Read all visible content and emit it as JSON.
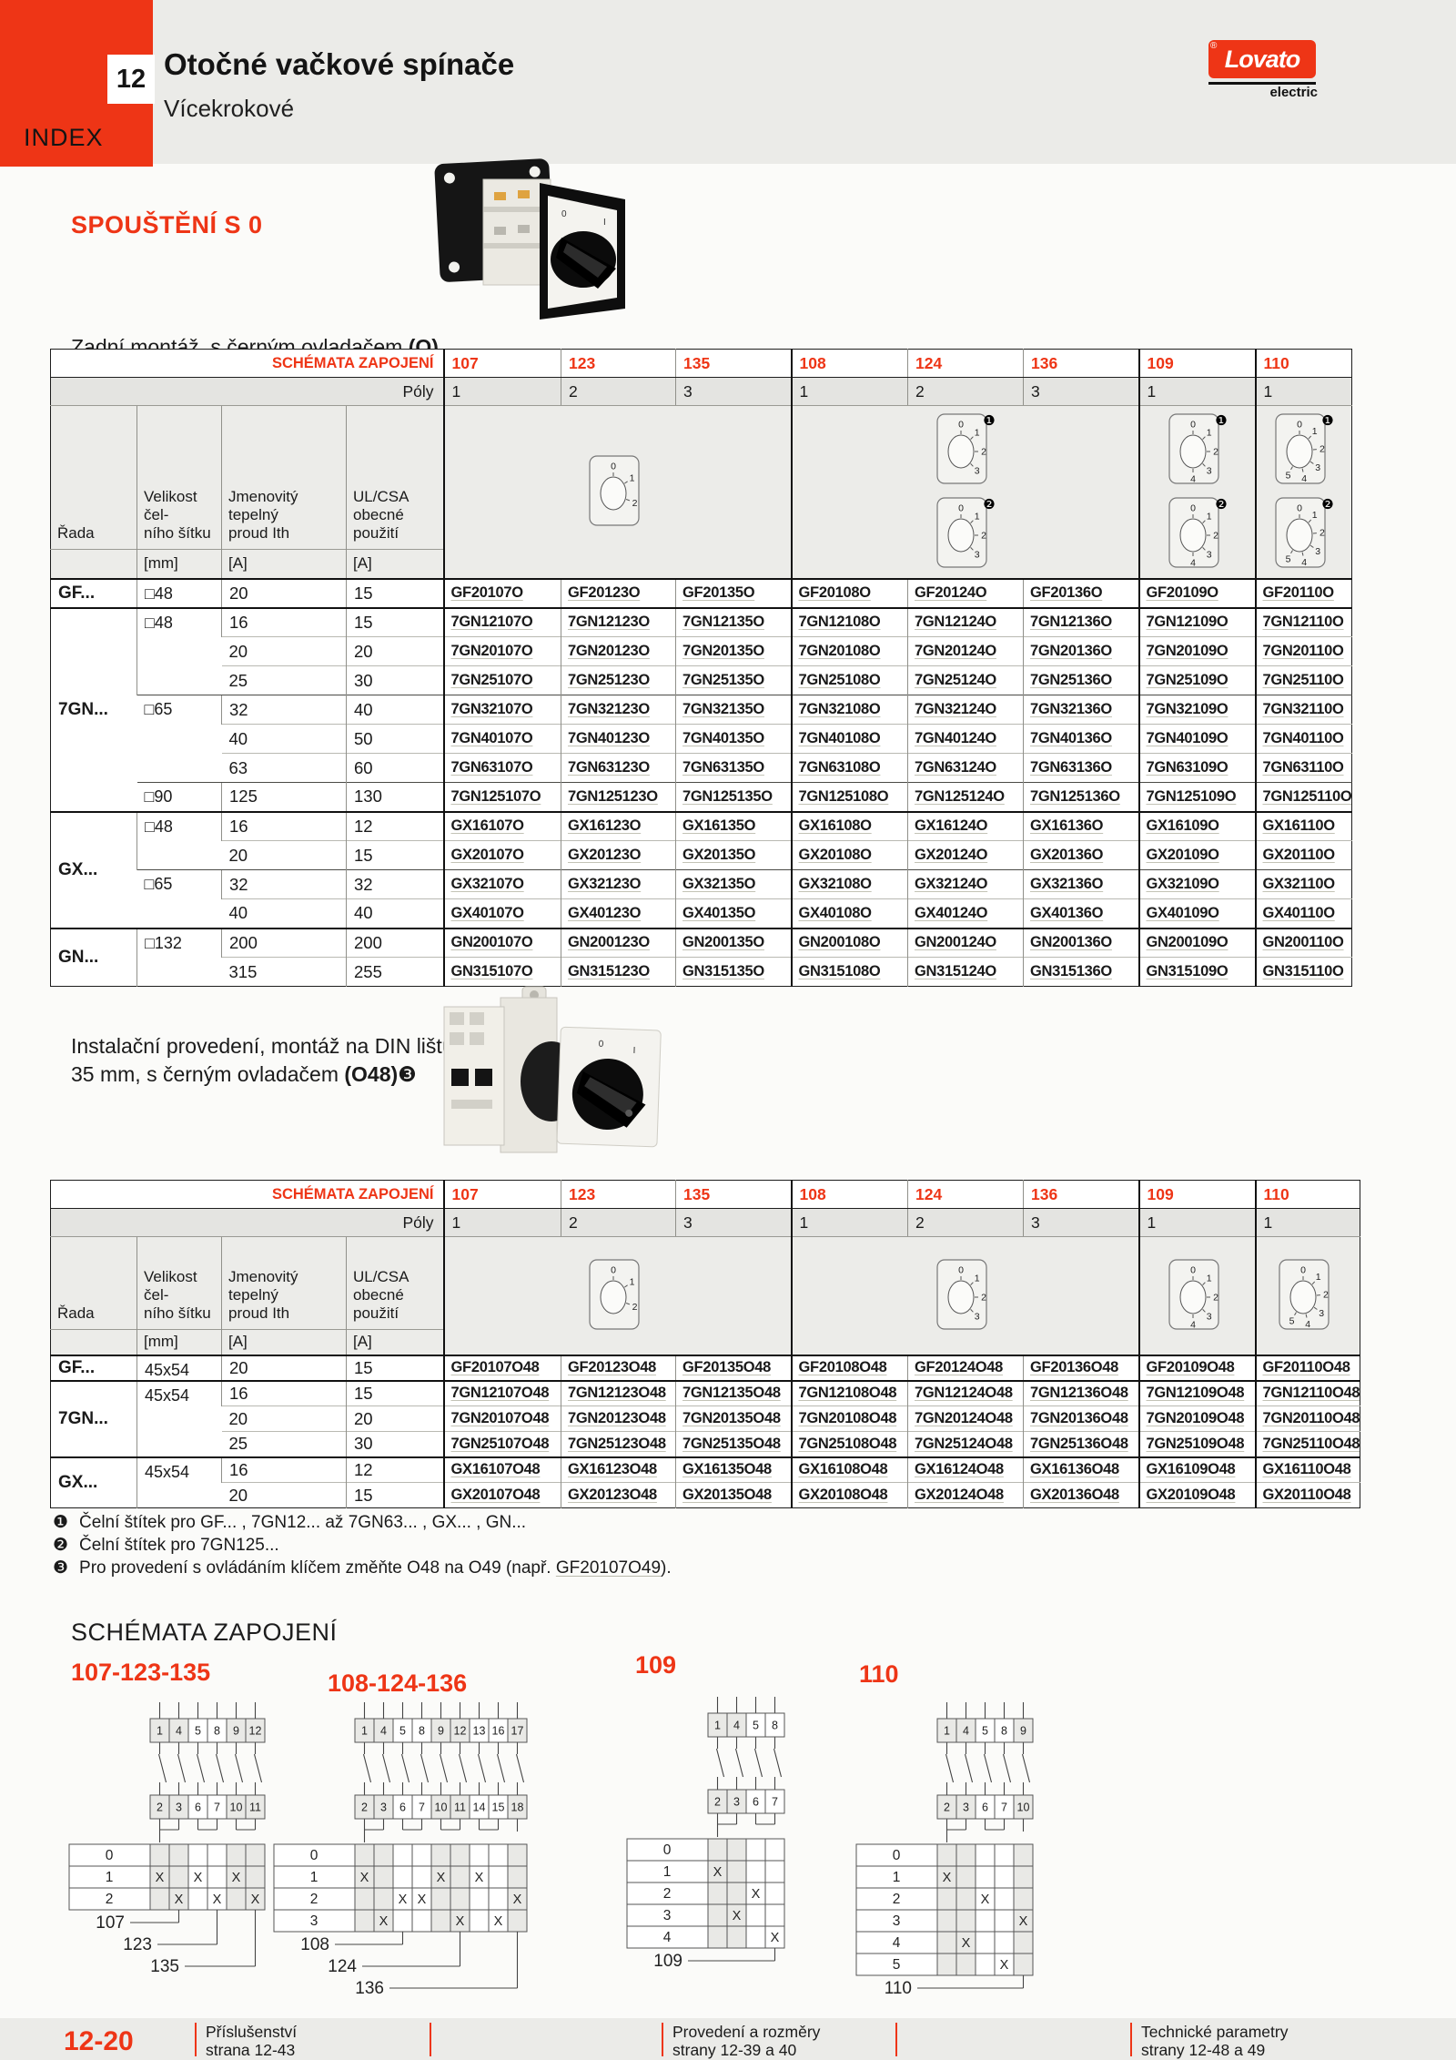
{
  "colors": {
    "accent": "#ee3516"
  },
  "header": {
    "chapter": "12",
    "index": "INDEX",
    "title": "Otočné vačkové spínače",
    "subtitle": "Vícekrokové",
    "logo_reg": "®",
    "logo_main": "Lovato",
    "logo_sub": "electric"
  },
  "section": {
    "title": "SPOUŠTĚNÍ S 0",
    "caption1_text": "Zadní montáž, s černým ovladačem ",
    "caption1_bold": "(O)",
    "caption2_line1": "Instalační provedení, montáž na DIN lištu",
    "caption2_line2": "35 mm, s černým ovladačem ",
    "caption2_bold": "(O48)",
    "caption2_marker": "❸"
  },
  "tables": [
    {
      "schemata_label": "SCHÉMATA ZAPOJENÍ",
      "schemes": [
        "107",
        "123",
        "135",
        "108",
        "124",
        "136",
        "109",
        "110"
      ],
      "poles_label": "Póly",
      "poles": [
        "1",
        "2",
        "3",
        "1",
        "2",
        "3",
        "1",
        "1"
      ],
      "col_headers": [
        {
          "lines": [
            "Řada"
          ]
        },
        {
          "lines": [
            "Velikost čel-",
            "ního šítku"
          ]
        },
        {
          "lines": [
            "Jmenovitý tepelný",
            "proud Ith"
          ]
        },
        {
          "lines": [
            "UL/CSA",
            "obecné použití"
          ]
        }
      ],
      "units": [
        "",
        "[mm]",
        "[A]",
        "[A]"
      ],
      "dials": [
        {
          "span": 3,
          "dials": [
            {
              "labels": [
                "0",
                "1",
                "2"
              ]
            }
          ]
        },
        {
          "span": 3,
          "dials": [
            {
              "badge": "❶",
              "labels": [
                "0",
                "1",
                "2",
                "3"
              ]
            },
            {
              "badge": "❷",
              "labels": [
                "0",
                "1",
                "2",
                "3"
              ]
            }
          ]
        },
        {
          "span": 1,
          "dials": [
            {
              "badge": "❶",
              "labels": [
                "0",
                "1",
                "2",
                "3",
                "4"
              ]
            },
            {
              "badge": "❷",
              "labels": [
                "0",
                "1",
                "2",
                "3",
                "4"
              ]
            }
          ]
        },
        {
          "span": 1,
          "dials": [
            {
              "badge": "❶",
              "labels": [
                "0",
                "1",
                "2",
                "3",
                "4",
                "5"
              ]
            },
            {
              "badge": "❷",
              "labels": [
                "0",
                "1",
                "2",
                "3",
                "4",
                "5"
              ]
            }
          ]
        }
      ],
      "groups": [
        {
          "series": "GF...",
          "subgroups": [
            {
              "size": "□48",
              "rows": [
                {
                  "ith": "20",
                  "ul": "15",
                  "codes": [
                    "GF20107O",
                    "GF20123O",
                    "GF20135O",
                    "GF20108O",
                    "GF20124O",
                    "GF20136O",
                    "GF20109O",
                    "GF20110O"
                  ]
                }
              ]
            }
          ]
        },
        {
          "series": "7GN...",
          "subgroups": [
            {
              "size": "□48",
              "rows": [
                {
                  "ith": "16",
                  "ul": "15",
                  "codes": [
                    "7GN12107O",
                    "7GN12123O",
                    "7GN12135O",
                    "7GN12108O",
                    "7GN12124O",
                    "7GN12136O",
                    "7GN12109O",
                    "7GN12110O"
                  ]
                },
                {
                  "ith": "20",
                  "ul": "20",
                  "codes": [
                    "7GN20107O",
                    "7GN20123O",
                    "7GN20135O",
                    "7GN20108O",
                    "7GN20124O",
                    "7GN20136O",
                    "7GN20109O",
                    "7GN20110O"
                  ]
                },
                {
                  "ith": "25",
                  "ul": "30",
                  "codes": [
                    "7GN25107O",
                    "7GN25123O",
                    "7GN25135O",
                    "7GN25108O",
                    "7GN25124O",
                    "7GN25136O",
                    "7GN25109O",
                    "7GN25110O"
                  ]
                }
              ]
            },
            {
              "size": "□65",
              "rows": [
                {
                  "ith": "32",
                  "ul": "40",
                  "codes": [
                    "7GN32107O",
                    "7GN32123O",
                    "7GN32135O",
                    "7GN32108O",
                    "7GN32124O",
                    "7GN32136O",
                    "7GN32109O",
                    "7GN32110O"
                  ]
                },
                {
                  "ith": "40",
                  "ul": "50",
                  "codes": [
                    "7GN40107O",
                    "7GN40123O",
                    "7GN40135O",
                    "7GN40108O",
                    "7GN40124O",
                    "7GN40136O",
                    "7GN40109O",
                    "7GN40110O"
                  ]
                },
                {
                  "ith": "63",
                  "ul": "60",
                  "codes": [
                    "7GN63107O",
                    "7GN63123O",
                    "7GN63135O",
                    "7GN63108O",
                    "7GN63124O",
                    "7GN63136O",
                    "7GN63109O",
                    "7GN63110O"
                  ]
                }
              ]
            },
            {
              "size": "□90",
              "rows": [
                {
                  "ith": "125",
                  "ul": "130",
                  "codes": [
                    "7GN125107O",
                    "7GN125123O",
                    "7GN125135O",
                    "7GN125108O",
                    "7GN125124O",
                    "7GN125136O",
                    "7GN125109O",
                    "7GN125110O"
                  ]
                }
              ]
            }
          ]
        },
        {
          "series": "GX...",
          "subgroups": [
            {
              "size": "□48",
              "rows": [
                {
                  "ith": "16",
                  "ul": "12",
                  "codes": [
                    "GX16107O",
                    "GX16123O",
                    "GX16135O",
                    "GX16108O",
                    "GX16124O",
                    "GX16136O",
                    "GX16109O",
                    "GX16110O"
                  ]
                },
                {
                  "ith": "20",
                  "ul": "15",
                  "codes": [
                    "GX20107O",
                    "GX20123O",
                    "GX20135O",
                    "GX20108O",
                    "GX20124O",
                    "GX20136O",
                    "GX20109O",
                    "GX20110O"
                  ]
                }
              ]
            },
            {
              "size": "□65",
              "rows": [
                {
                  "ith": "32",
                  "ul": "32",
                  "codes": [
                    "GX32107O",
                    "GX32123O",
                    "GX32135O",
                    "GX32108O",
                    "GX32124O",
                    "GX32136O",
                    "GX32109O",
                    "GX32110O"
                  ]
                },
                {
                  "ith": "40",
                  "ul": "40",
                  "codes": [
                    "GX40107O",
                    "GX40123O",
                    "GX40135O",
                    "GX40108O",
                    "GX40124O",
                    "GX40136O",
                    "GX40109O",
                    "GX40110O"
                  ]
                }
              ]
            }
          ]
        },
        {
          "series": "GN...",
          "subgroups": [
            {
              "size": "□132",
              "rows": [
                {
                  "ith": "200",
                  "ul": "200",
                  "codes": [
                    "GN200107O",
                    "GN200123O",
                    "GN200135O",
                    "GN200108O",
                    "GN200124O",
                    "GN200136O",
                    "GN200109O",
                    "GN200110O"
                  ]
                },
                {
                  "ith": "315",
                  "ul": "255",
                  "codes": [
                    "GN315107O",
                    "GN315123O",
                    "GN315135O",
                    "GN315108O",
                    "GN315124O",
                    "GN315136O",
                    "GN315109O",
                    "GN315110O"
                  ]
                }
              ]
            }
          ]
        }
      ]
    },
    {
      "schemata_label": "SCHÉMATA ZAPOJENÍ",
      "schemes": [
        "107",
        "123",
        "135",
        "108",
        "124",
        "136",
        "109",
        "110"
      ],
      "poles_label": "Póly",
      "poles": [
        "1",
        "2",
        "3",
        "1",
        "2",
        "3",
        "1",
        "1"
      ],
      "col_headers": [
        {
          "lines": [
            "Řada"
          ]
        },
        {
          "lines": [
            "Velikost čel-",
            "ního šítku"
          ]
        },
        {
          "lines": [
            "Jmenovitý tepelný",
            "proud Ith"
          ]
        },
        {
          "lines": [
            "UL/CSA",
            "obecné použití"
          ]
        }
      ],
      "units": [
        "",
        "[mm]",
        "[A]",
        "[A]"
      ],
      "dials": [
        {
          "span": 3,
          "dials": [
            {
              "labels": [
                "0",
                "1",
                "2"
              ]
            }
          ]
        },
        {
          "span": 3,
          "dials": [
            {
              "labels": [
                "0",
                "1",
                "2",
                "3"
              ]
            }
          ]
        },
        {
          "span": 1,
          "dials": [
            {
              "labels": [
                "0",
                "1",
                "2",
                "3",
                "4"
              ]
            }
          ]
        },
        {
          "span": 1,
          "dials": [
            {
              "labels": [
                "0",
                "1",
                "2",
                "3",
                "4",
                "5"
              ]
            }
          ]
        }
      ],
      "groups": [
        {
          "series": "GF...",
          "subgroups": [
            {
              "size": "45x54",
              "rows": [
                {
                  "ith": "20",
                  "ul": "15",
                  "codes": [
                    "GF20107O48",
                    "GF20123O48",
                    "GF20135O48",
                    "GF20108O48",
                    "GF20124O48",
                    "GF20136O48",
                    "GF20109O48",
                    "GF20110O48"
                  ]
                }
              ]
            }
          ]
        },
        {
          "series": "7GN...",
          "subgroups": [
            {
              "size": "45x54",
              "rows": [
                {
                  "ith": "16",
                  "ul": "15",
                  "codes": [
                    "7GN12107O48",
                    "7GN12123O48",
                    "7GN12135O48",
                    "7GN12108O48",
                    "7GN12124O48",
                    "7GN12136O48",
                    "7GN12109O48",
                    "7GN12110O48"
                  ]
                },
                {
                  "ith": "20",
                  "ul": "20",
                  "codes": [
                    "7GN20107O48",
                    "7GN20123O48",
                    "7GN20135O48",
                    "7GN20108O48",
                    "7GN20124O48",
                    "7GN20136O48",
                    "7GN20109O48",
                    "7GN20110O48"
                  ]
                },
                {
                  "ith": "25",
                  "ul": "30",
                  "codes": [
                    "7GN25107O48",
                    "7GN25123O48",
                    "7GN25135O48",
                    "7GN25108O48",
                    "7GN25124O48",
                    "7GN25136O48",
                    "7GN25109O48",
                    "7GN25110O48"
                  ]
                }
              ]
            }
          ]
        },
        {
          "series": "GX...",
          "subgroups": [
            {
              "size": "45x54",
              "rows": [
                {
                  "ith": "16",
                  "ul": "12",
                  "codes": [
                    "GX16107O48",
                    "GX16123O48",
                    "GX16135O48",
                    "GX16108O48",
                    "GX16124O48",
                    "GX16136O48",
                    "GX16109O48",
                    "GX16110O48"
                  ]
                },
                {
                  "ith": "20",
                  "ul": "15",
                  "codes": [
                    "GX20107O48",
                    "GX20123O48",
                    "GX20135O48",
                    "GX20108O48",
                    "GX20124O48",
                    "GX20136O48",
                    "GX20109O48",
                    "GX20110O48"
                  ]
                }
              ]
            }
          ]
        }
      ]
    }
  ],
  "footnotes": [
    {
      "marker": "❶",
      "text": "Čelní štítek pro GF... , 7GN12... až 7GN63... , GX... , GN..."
    },
    {
      "marker": "❷",
      "text": "Čelní štítek pro 7GN125..."
    },
    {
      "marker": "❸",
      "pre": "Pro provedení s ovládáním klíčem změňte O48 na O49 (např. ",
      "code": "GF20107O49",
      "post": ")."
    }
  ],
  "diagrams": {
    "title": "SCHÉMATA ZAPOJENÍ",
    "blocks": [
      {
        "label": "107-123-135",
        "top": [
          "1",
          "4",
          "5",
          "8",
          "9",
          "12"
        ],
        "bottom": [
          "2",
          "3",
          "6",
          "7",
          "10",
          "11"
        ],
        "rows": [
          {
            "label": "0",
            "x": []
          },
          {
            "label": "1",
            "x": [
              1,
              3,
              5
            ]
          },
          {
            "label": "2",
            "x": [
              2,
              4,
              6
            ]
          }
        ],
        "callouts": [
          {
            "label": "107",
            "col": 2
          },
          {
            "label": "123",
            "col": 4
          },
          {
            "label": "135",
            "col": 6
          }
        ]
      },
      {
        "label": "108-124-136",
        "top": [
          "1",
          "4",
          "5",
          "8",
          "9",
          "12",
          "13",
          "16",
          "17"
        ],
        "bottom": [
          "2",
          "3",
          "6",
          "7",
          "10",
          "11",
          "14",
          "15",
          "18"
        ],
        "rows": [
          {
            "label": "0",
            "x": []
          },
          {
            "label": "1",
            "x": [
              1,
              5,
              7
            ]
          },
          {
            "label": "2",
            "x": [
              3,
              4,
              9
            ]
          },
          {
            "label": "3",
            "x": [
              2,
              6,
              8
            ]
          }
        ],
        "callouts": [
          {
            "label": "108",
            "col": 3
          },
          {
            "label": "124",
            "col": 6
          },
          {
            "label": "136",
            "col": 9
          }
        ]
      },
      {
        "label": "109",
        "top": [
          "1",
          "4",
          "5",
          "8"
        ],
        "bottom": [
          "2",
          "3",
          "6",
          "7"
        ],
        "rows": [
          {
            "label": "0",
            "x": []
          },
          {
            "label": "1",
            "x": [
              1
            ]
          },
          {
            "label": "2",
            "x": [
              3
            ]
          },
          {
            "label": "3",
            "x": [
              2
            ]
          },
          {
            "label": "4",
            "x": [
              4
            ]
          }
        ],
        "callouts": [
          {
            "label": "109",
            "col": 4
          }
        ]
      },
      {
        "label": "110",
        "top": [
          "1",
          "4",
          "5",
          "8",
          "9"
        ],
        "bottom": [
          "2",
          "3",
          "6",
          "7",
          "10"
        ],
        "rows": [
          {
            "label": "0",
            "x": []
          },
          {
            "label": "1",
            "x": [
              1
            ]
          },
          {
            "label": "2",
            "x": [
              3
            ]
          },
          {
            "label": "3",
            "x": [
              5
            ]
          },
          {
            "label": "4",
            "x": [
              2
            ]
          },
          {
            "label": "5",
            "x": [
              4
            ]
          }
        ],
        "callouts": [
          {
            "label": "110",
            "col": 5
          }
        ]
      }
    ]
  },
  "footer": {
    "page": "12-20",
    "links": [
      {
        "title": "Příslušenství",
        "sub": "strana 12-43"
      },
      {
        "title": "Provedení a rozměry",
        "sub": "strany 12-39 a 40"
      },
      {
        "title": "Technické parametry",
        "sub": "strany 12-48 a 49"
      }
    ]
  }
}
